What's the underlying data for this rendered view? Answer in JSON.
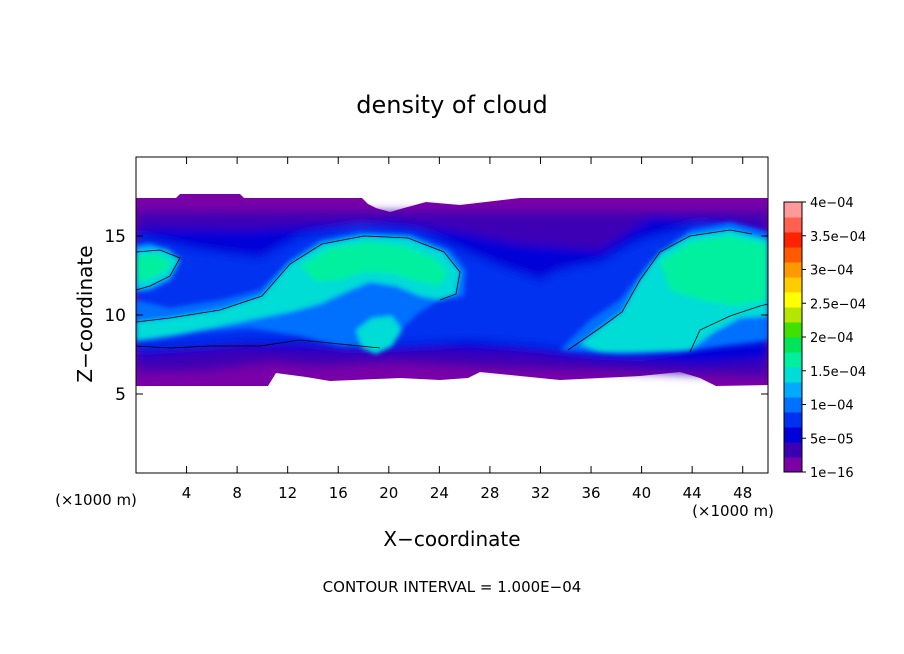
{
  "chart_data": {
    "type": "heatmap",
    "title": "density of cloud",
    "xlabel": "X−coordinate",
    "ylabel": "Z−coordinate",
    "x_unit_label": "(×1000 m)",
    "z_unit_label": "(×1000 m)",
    "footer": "CONTOUR INTERVAL = 1.000E−04",
    "xlim": [
      0,
      50
    ],
    "ylim": [
      0,
      20
    ],
    "x_ticks": [
      4,
      8,
      12,
      16,
      20,
      24,
      28,
      32,
      36,
      40,
      44,
      48
    ],
    "y_ticks": [
      5,
      10,
      15
    ],
    "colorbar": {
      "labels": [
        "1e−16",
        "5e−05",
        "1e−04",
        "1.5e−04",
        "2e−04",
        "2.5e−04",
        "3e−04",
        "3.5e−04",
        "4e−04"
      ],
      "colors": [
        "#7a00a8",
        "#3c00b4",
        "#0000d8",
        "#0030f0",
        "#0070ff",
        "#00aaff",
        "#00dcd6",
        "#00f0a0",
        "#00e45a",
        "#40e000",
        "#b4e600",
        "#ffff00",
        "#ffcc00",
        "#ff9900",
        "#ff5a00",
        "#ff2200",
        "#ff6050",
        "#ff9a9a"
      ]
    },
    "cloud_layer_z": [
      5.5,
      17.3
    ],
    "features": [
      {
        "x": [
          0,
          5
        ],
        "z": [
          11,
          14.5
        ],
        "level": "1.5e−04"
      },
      {
        "x": [
          10,
          26
        ],
        "z": [
          9,
          15
        ],
        "level": "1.5e−04"
      },
      {
        "x": [
          36,
          50
        ],
        "z": [
          8,
          15
        ],
        "level": "1.5e−04"
      }
    ]
  }
}
